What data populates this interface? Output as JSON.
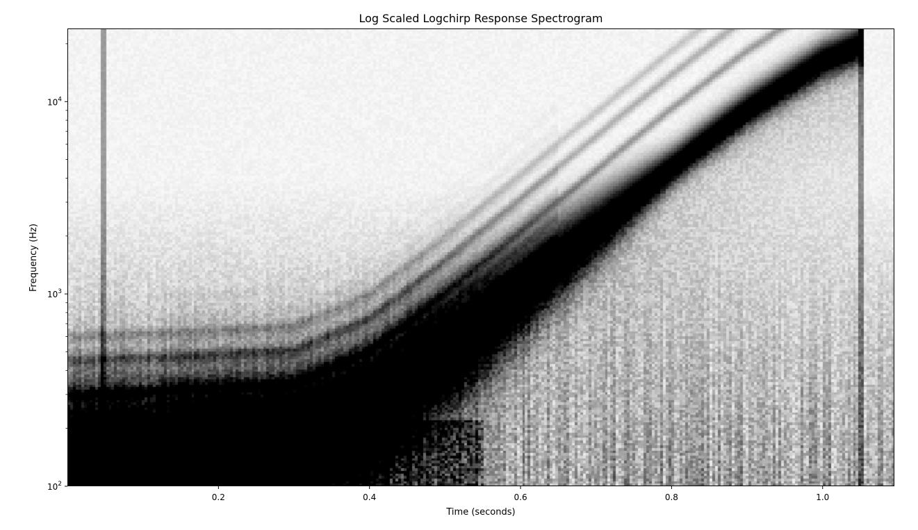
{
  "chart_data": {
    "type": "heatmap",
    "title": "Log Scaled Logchirp Response Spectrogram",
    "xlabel": "Time (seconds)",
    "ylabel": "Frequency (Hz)",
    "xlim": [
      0.0,
      1.095
    ],
    "ylim": [
      100,
      24000
    ],
    "yscale": "log",
    "colormap": "gray_r",
    "grid": false,
    "x_ticks": [
      {
        "value": 0.2,
        "label": "0.2"
      },
      {
        "value": 0.4,
        "label": "0.4"
      },
      {
        "value": 0.6,
        "label": "0.6"
      },
      {
        "value": 0.8,
        "label": "0.8"
      },
      {
        "value": 1.0,
        "label": "1.0"
      }
    ],
    "y_ticks": [
      {
        "value": 100,
        "base": "10",
        "exp": "2"
      },
      {
        "value": 1000,
        "base": "10",
        "exp": "3"
      },
      {
        "value": 10000,
        "base": "10",
        "exp": "4"
      }
    ],
    "y_minor_ticks": [
      200,
      300,
      400,
      500,
      600,
      700,
      800,
      900,
      2000,
      3000,
      4000,
      5000,
      6000,
      7000,
      8000,
      9000,
      20000
    ],
    "features": {
      "chirp_path": [
        [
          0.02,
          150
        ],
        [
          0.3,
          170
        ],
        [
          0.4,
          250
        ],
        [
          0.5,
          500
        ],
        [
          0.6,
          1050
        ],
        [
          0.7,
          2200
        ],
        [
          0.8,
          4600
        ],
        [
          0.9,
          9200
        ],
        [
          1.0,
          16500
        ],
        [
          1.05,
          20000
        ]
      ],
      "transients_at_seconds": [
        0.048,
        1.05
      ],
      "harmonic_orders": [
        2,
        3,
        4
      ]
    }
  }
}
